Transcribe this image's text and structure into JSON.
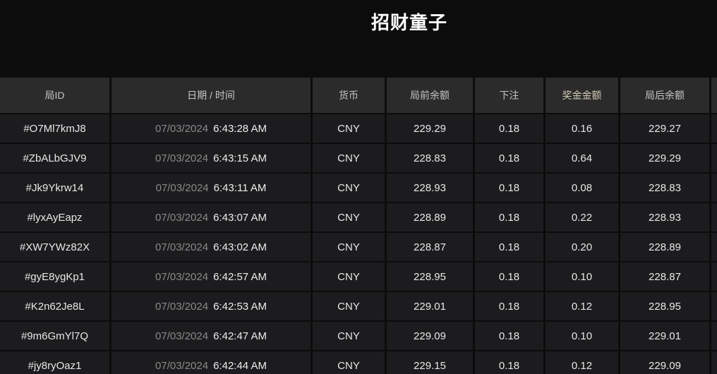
{
  "page": {
    "title": "招财童子"
  },
  "table": {
    "columns": [
      {
        "key": "round_id",
        "label": "局ID"
      },
      {
        "key": "datetime",
        "label": "日期 / 时间"
      },
      {
        "key": "currency",
        "label": "货币"
      },
      {
        "key": "balance_before",
        "label": "局前余额"
      },
      {
        "key": "bet",
        "label": "下注"
      },
      {
        "key": "prize",
        "label": "奖金金额"
      },
      {
        "key": "balance_after",
        "label": "局后余额"
      }
    ],
    "rows": [
      {
        "round_id": "#O7Ml7kmJ8",
        "date": "07/03/2024",
        "time": "6:43:28 AM",
        "currency": "CNY",
        "balance_before": "229.29",
        "bet": "0.18",
        "prize": "0.16",
        "balance_after": "229.27"
      },
      {
        "round_id": "#ZbALbGJV9",
        "date": "07/03/2024",
        "time": "6:43:15 AM",
        "currency": "CNY",
        "balance_before": "228.83",
        "bet": "0.18",
        "prize": "0.64",
        "balance_after": "229.29"
      },
      {
        "round_id": "#Jk9Ykrw14",
        "date": "07/03/2024",
        "time": "6:43:11 AM",
        "currency": "CNY",
        "balance_before": "228.93",
        "bet": "0.18",
        "prize": "0.08",
        "balance_after": "228.83"
      },
      {
        "round_id": "#lyxAyEapz",
        "date": "07/03/2024",
        "time": "6:43:07 AM",
        "currency": "CNY",
        "balance_before": "228.89",
        "bet": "0.18",
        "prize": "0.22",
        "balance_after": "228.93"
      },
      {
        "round_id": "#XW7YWz82X",
        "date": "07/03/2024",
        "time": "6:43:02 AM",
        "currency": "CNY",
        "balance_before": "228.87",
        "bet": "0.18",
        "prize": "0.20",
        "balance_after": "228.89"
      },
      {
        "round_id": "#gyE8ygKp1",
        "date": "07/03/2024",
        "time": "6:42:57 AM",
        "currency": "CNY",
        "balance_before": "228.95",
        "bet": "0.18",
        "prize": "0.10",
        "balance_after": "228.87"
      },
      {
        "round_id": "#K2n62Je8L",
        "date": "07/03/2024",
        "time": "6:42:53 AM",
        "currency": "CNY",
        "balance_before": "229.01",
        "bet": "0.18",
        "prize": "0.12",
        "balance_after": "228.95"
      },
      {
        "round_id": "#9m6GmYl7Q",
        "date": "07/03/2024",
        "time": "6:42:47 AM",
        "currency": "CNY",
        "balance_before": "229.09",
        "bet": "0.18",
        "prize": "0.10",
        "balance_after": "229.01"
      },
      {
        "round_id": "#jy8ryOaz1",
        "date": "07/03/2024",
        "time": "6:42:44 AM",
        "currency": "CNY",
        "balance_before": "229.15",
        "bet": "0.18",
        "prize": "0.12",
        "balance_after": "229.09"
      }
    ]
  },
  "colors": {
    "page_bg": "#0c0c0c",
    "header_bg": "#2b2b2b",
    "row_bg": "#1c1c1e",
    "title_text": "#ffffff",
    "header_text": "#c6c6c6",
    "prize_header_text": "#d2cbb6",
    "primary_text": "#e8e8e8",
    "date_text": "#8a8a8a"
  }
}
